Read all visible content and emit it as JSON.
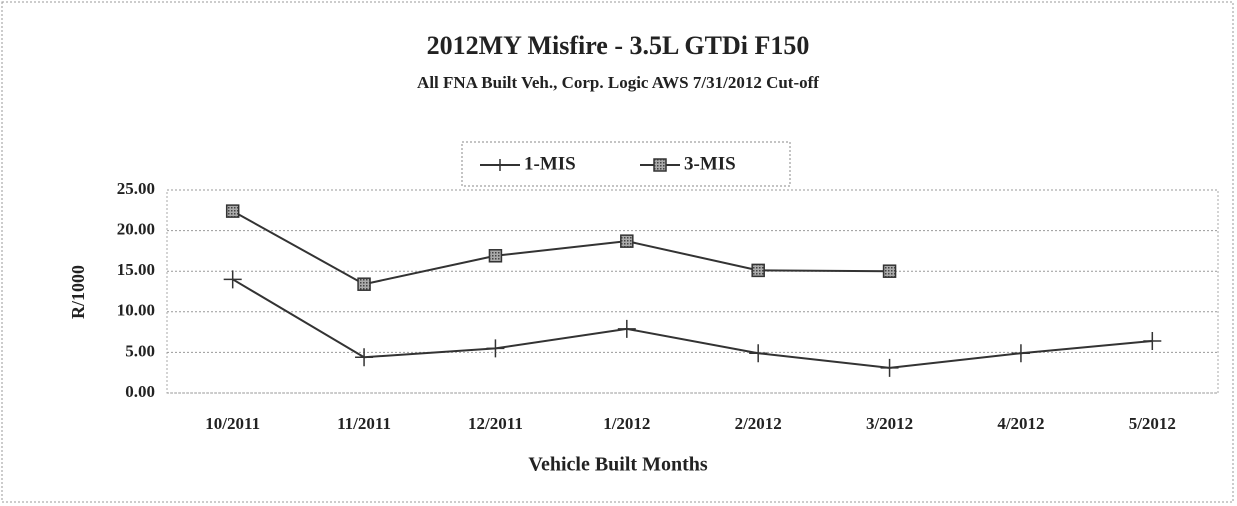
{
  "chart_data": {
    "type": "line",
    "title": "2012MY Misfire - 3.5L GTDi F150",
    "subtitle": "All FNA Built Veh., Corp. Logic AWS 7/31/2012 Cut-off",
    "x_label": "Vehicle Built Months",
    "y_label": "R/1000",
    "categories": [
      "10/2011",
      "11/2011",
      "12/2011",
      "1/2012",
      "2/2012",
      "3/2012",
      "4/2012",
      "5/2012"
    ],
    "series": [
      {
        "name": "1-MIS",
        "color": "#333333",
        "marker": "plus",
        "values": [
          14.0,
          4.4,
          5.5,
          7.9,
          4.9,
          3.1,
          4.9,
          6.4
        ]
      },
      {
        "name": "3-MIS",
        "color": "#333333",
        "marker": "square",
        "values": [
          22.4,
          13.4,
          16.9,
          18.7,
          15.1,
          15.0,
          null,
          null
        ]
      }
    ],
    "ylim": [
      0,
      25
    ],
    "yticks": [
      {
        "value": 0,
        "label": "0.00"
      },
      {
        "value": 5,
        "label": "5.00"
      },
      {
        "value": 10,
        "label": "10.00"
      },
      {
        "value": 15,
        "label": "15.00"
      },
      {
        "value": 20,
        "label": "20.00"
      },
      {
        "value": 25,
        "label": "25.00"
      }
    ],
    "grid": true,
    "legend": "top"
  }
}
